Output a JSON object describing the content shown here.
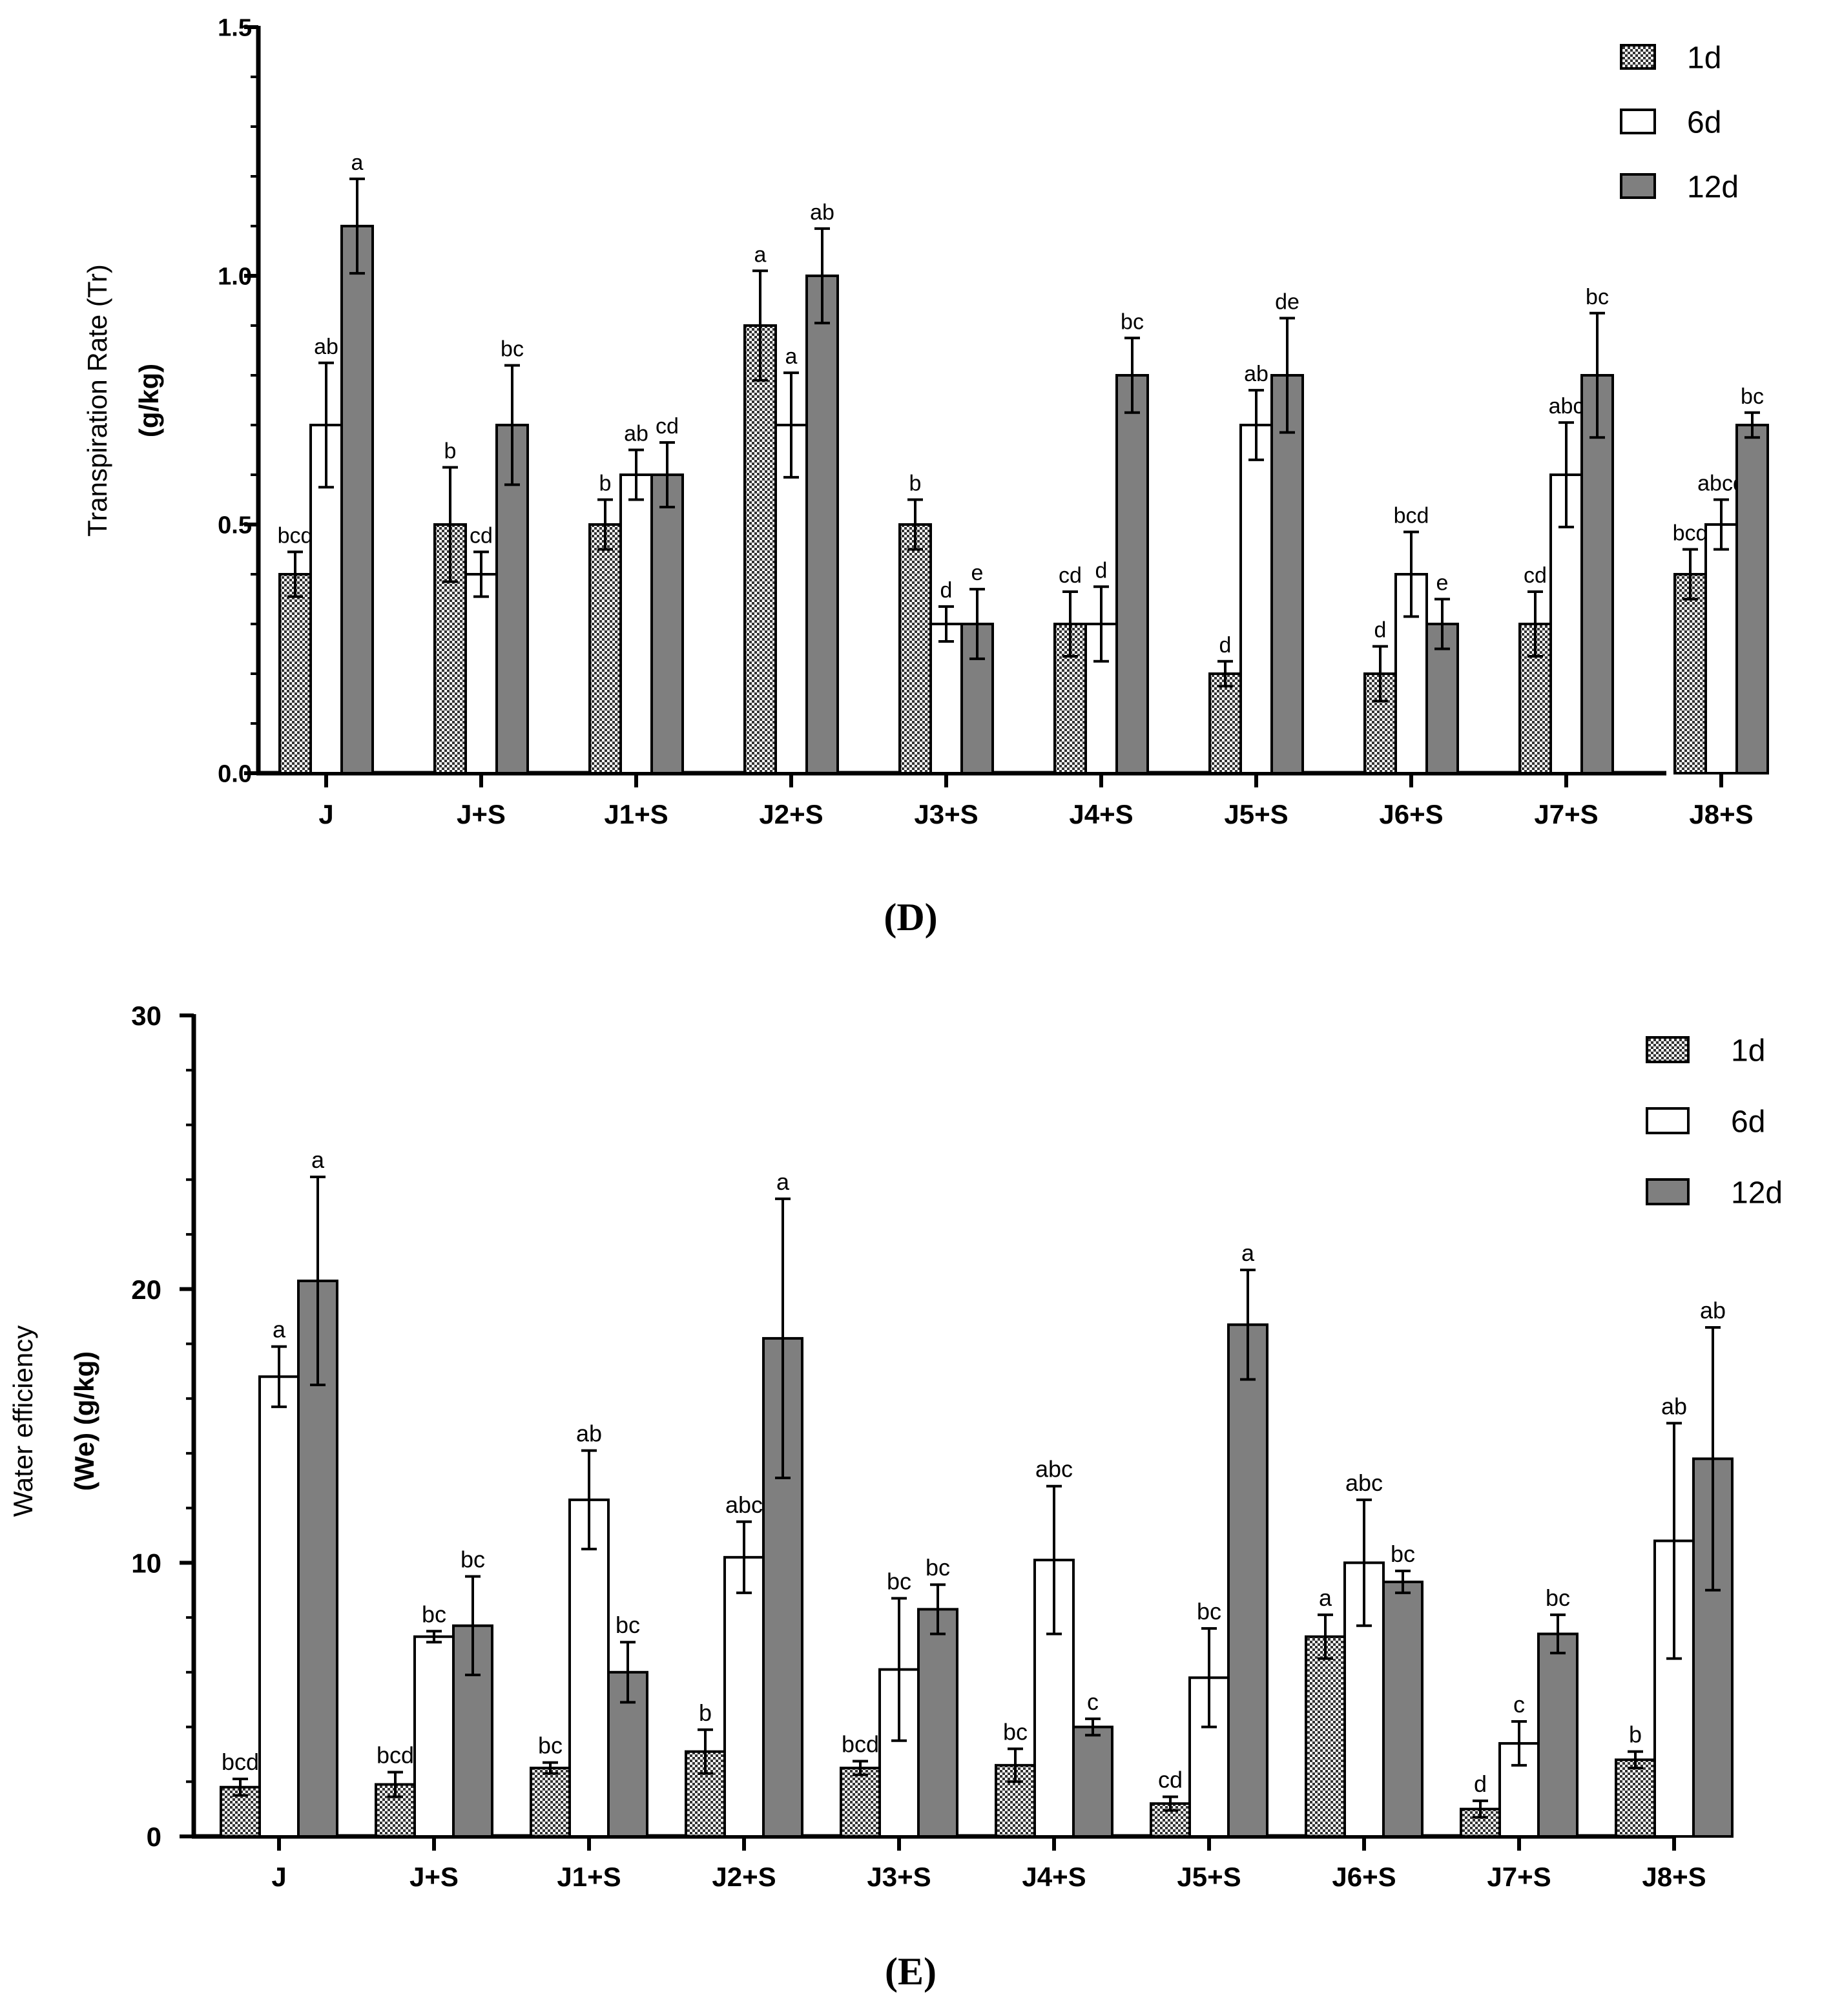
{
  "colors": {
    "series_1d": "#b4b4b4",
    "series_6d": "#ffffff",
    "series_12d": "#7f7f7f",
    "axis": "#000000"
  },
  "chart_data": [
    {
      "type": "bar",
      "panel_label": "(D)",
      "ylabel_line1": "Transpiration Rate (Tr)",
      "ylabel_line2": "(g/kg)",
      "xlabel": "",
      "categories": [
        "J",
        "J+S",
        "J1+S",
        "J2+S",
        "J3+S",
        "J4+S",
        "J5+S",
        "J6+S",
        "J7+S",
        "J8+S"
      ],
      "ylim": [
        0,
        1.5
      ],
      "yticks": [
        0.0,
        0.5,
        1.0,
        1.5
      ],
      "ytick_labels": [
        "0.0",
        "0.5",
        "1.0",
        "1.5"
      ],
      "legend": [
        "1d",
        "6d",
        "12d"
      ],
      "series": [
        {
          "name": "1d",
          "values": [
            0.4,
            0.5,
            0.5,
            0.9,
            0.5,
            0.3,
            0.2,
            0.2,
            0.3,
            0.4
          ],
          "errors": [
            0.045,
            0.115,
            0.05,
            0.11,
            0.05,
            0.065,
            0.025,
            0.055,
            0.065,
            0.05
          ],
          "letters": [
            "bcd",
            "b",
            "b",
            "a",
            "b",
            "cd",
            "d",
            "d",
            "cd",
            "bcd"
          ]
        },
        {
          "name": "6d",
          "values": [
            0.7,
            0.4,
            0.6,
            0.7,
            0.3,
            0.3,
            0.7,
            0.4,
            0.6,
            0.5
          ],
          "errors": [
            0.125,
            0.045,
            0.05,
            0.105,
            0.035,
            0.075,
            0.07,
            0.085,
            0.105,
            0.05
          ],
          "letters": [
            "ab",
            "cd",
            "ab",
            "a",
            "d",
            "d",
            "ab",
            "bcd",
            "abc",
            "abcd"
          ]
        },
        {
          "name": "12d",
          "values": [
            1.1,
            0.7,
            0.6,
            1.0,
            0.3,
            0.8,
            0.8,
            0.3,
            0.8,
            0.7
          ],
          "errors": [
            0.095,
            0.12,
            0.065,
            0.095,
            0.07,
            0.075,
            0.115,
            0.05,
            0.125,
            0.025
          ],
          "letters": [
            "a",
            "bc",
            "cd",
            "ab",
            "e",
            "bc",
            "de",
            "e",
            "bc",
            "bc"
          ]
        }
      ]
    },
    {
      "type": "bar",
      "panel_label": "(E)",
      "ylabel_line1": "Water efficiency",
      "ylabel_line2": "(We) (g/kg)",
      "xlabel": "",
      "categories": [
        "J",
        "J+S",
        "J1+S",
        "J2+S",
        "J3+S",
        "J4+S",
        "J5+S",
        "J6+S",
        "J7+S",
        "J8+S"
      ],
      "ylim": [
        0,
        30
      ],
      "yticks": [
        0,
        10,
        20,
        30
      ],
      "ytick_labels": [
        "0",
        "10",
        "20",
        "30"
      ],
      "legend": [
        "1d",
        "6d",
        "12d"
      ],
      "series": [
        {
          "name": "1d",
          "values": [
            1.8,
            1.9,
            2.5,
            3.1,
            2.5,
            2.6,
            1.2,
            7.3,
            1.0,
            2.8
          ],
          "errors": [
            0.3,
            0.45,
            0.2,
            0.8,
            0.25,
            0.6,
            0.25,
            0.8,
            0.3,
            0.3
          ],
          "letters": [
            "bcd",
            "bcd",
            "bc",
            "b",
            "bcd",
            "bc",
            "cd",
            "a",
            "d",
            "b"
          ]
        },
        {
          "name": "6d",
          "values": [
            16.8,
            7.3,
            12.3,
            10.2,
            6.1,
            10.1,
            5.8,
            10.0,
            3.4,
            10.8
          ],
          "errors": [
            1.1,
            0.2,
            1.8,
            1.3,
            2.6,
            2.7,
            1.8,
            2.3,
            0.8,
            4.3
          ],
          "letters": [
            "a",
            "bc",
            "ab",
            "abc",
            "bc",
            "abc",
            "bc",
            "abc",
            "c",
            "ab"
          ]
        },
        {
          "name": "12d",
          "values": [
            20.3,
            7.7,
            6.0,
            18.2,
            8.3,
            4.0,
            18.7,
            9.3,
            7.4,
            13.8
          ],
          "errors": [
            3.8,
            1.8,
            1.1,
            5.1,
            0.9,
            0.3,
            2.0,
            0.4,
            0.7,
            4.8
          ],
          "letters": [
            "a",
            "bc",
            "bc",
            "a",
            "bc",
            "c",
            "a",
            "bc",
            "bc",
            "ab"
          ]
        }
      ]
    }
  ]
}
